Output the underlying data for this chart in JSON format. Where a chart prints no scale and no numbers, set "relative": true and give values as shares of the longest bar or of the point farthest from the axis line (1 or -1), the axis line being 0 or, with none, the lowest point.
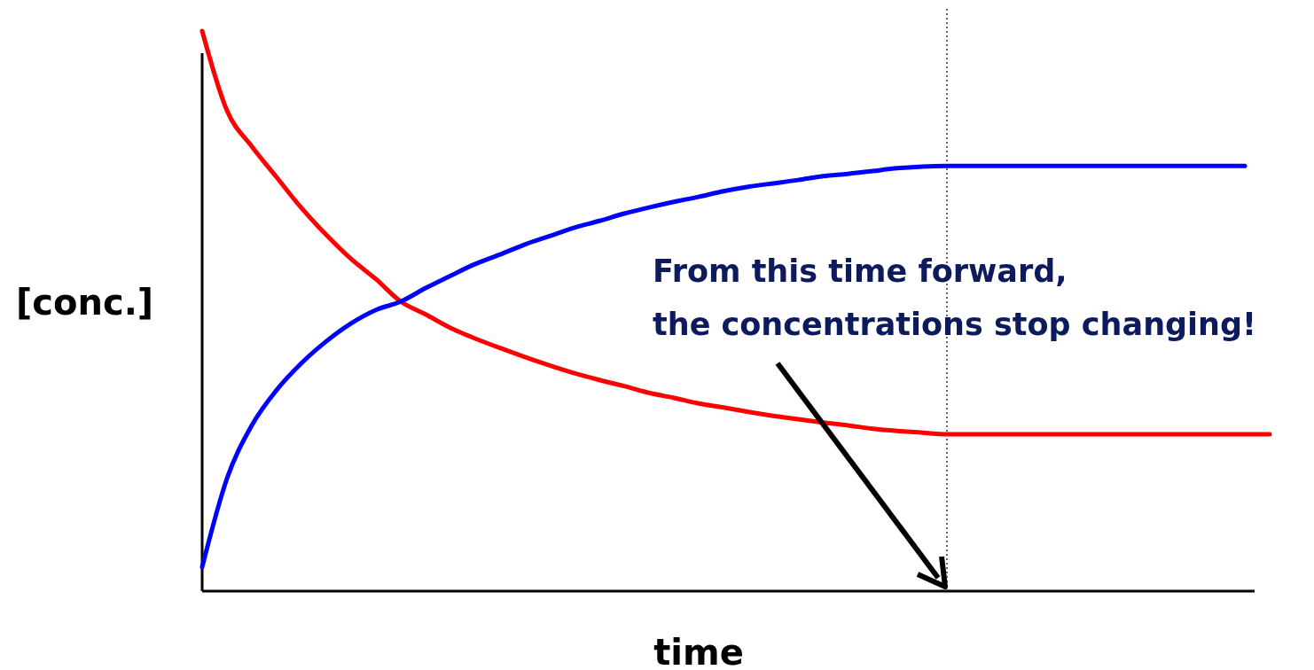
{
  "chart_data": {
    "type": "line",
    "relative": true,
    "xlabel": "time",
    "ylabel": "[conc.]",
    "categories": [
      null,
      null,
      null,
      null,
      null,
      null,
      null,
      null,
      null,
      null,
      null,
      null,
      null,
      null,
      null,
      null,
      null,
      null,
      null,
      null,
      null,
      null,
      null,
      null,
      null,
      null,
      null,
      null,
      null,
      null,
      null,
      null,
      null,
      null,
      null,
      null,
      null,
      null,
      null,
      null,
      null,
      null,
      null,
      null
    ],
    "series": [
      {
        "color": "#ff0000",
        "values": [
          1,
          0.858,
          0.794,
          0.739,
          0.684,
          0.636,
          0.593,
          0.557,
          0.517,
          0.494,
          0.47,
          0.451,
          0.434,
          0.418,
          0.403,
          0.389,
          0.377,
          0.366,
          0.354,
          0.345,
          0.335,
          0.328,
          0.32,
          0.313,
          0.307,
          0.301,
          0.296,
          0.29,
          0.286,
          0.283,
          0.28,
          0.28,
          0.28,
          0.28,
          0.28,
          0.28,
          0.28,
          0.28,
          0.28,
          0.28,
          0.28,
          0.28,
          0.28,
          0.28
        ]
      },
      {
        "color": "#0000ff",
        "values": [
          0.043,
          0.201,
          0.296,
          0.359,
          0.407,
          0.446,
          0.478,
          0.502,
          0.517,
          0.541,
          0.563,
          0.584,
          0.601,
          0.619,
          0.634,
          0.649,
          0.661,
          0.674,
          0.685,
          0.695,
          0.704,
          0.714,
          0.722,
          0.728,
          0.734,
          0.741,
          0.745,
          0.75,
          0.755,
          0.758,
          0.759,
          0.759,
          0.759,
          0.759,
          0.759,
          0.759,
          0.759,
          0.759,
          0.759,
          0.759,
          0.759,
          0.759,
          0.759,
          null
        ]
      }
    ],
    "annotations": [
      "From this time forward, the concentrations stop changing!"
    ],
    "marker": "none",
    "line_style": "solid"
  }
}
